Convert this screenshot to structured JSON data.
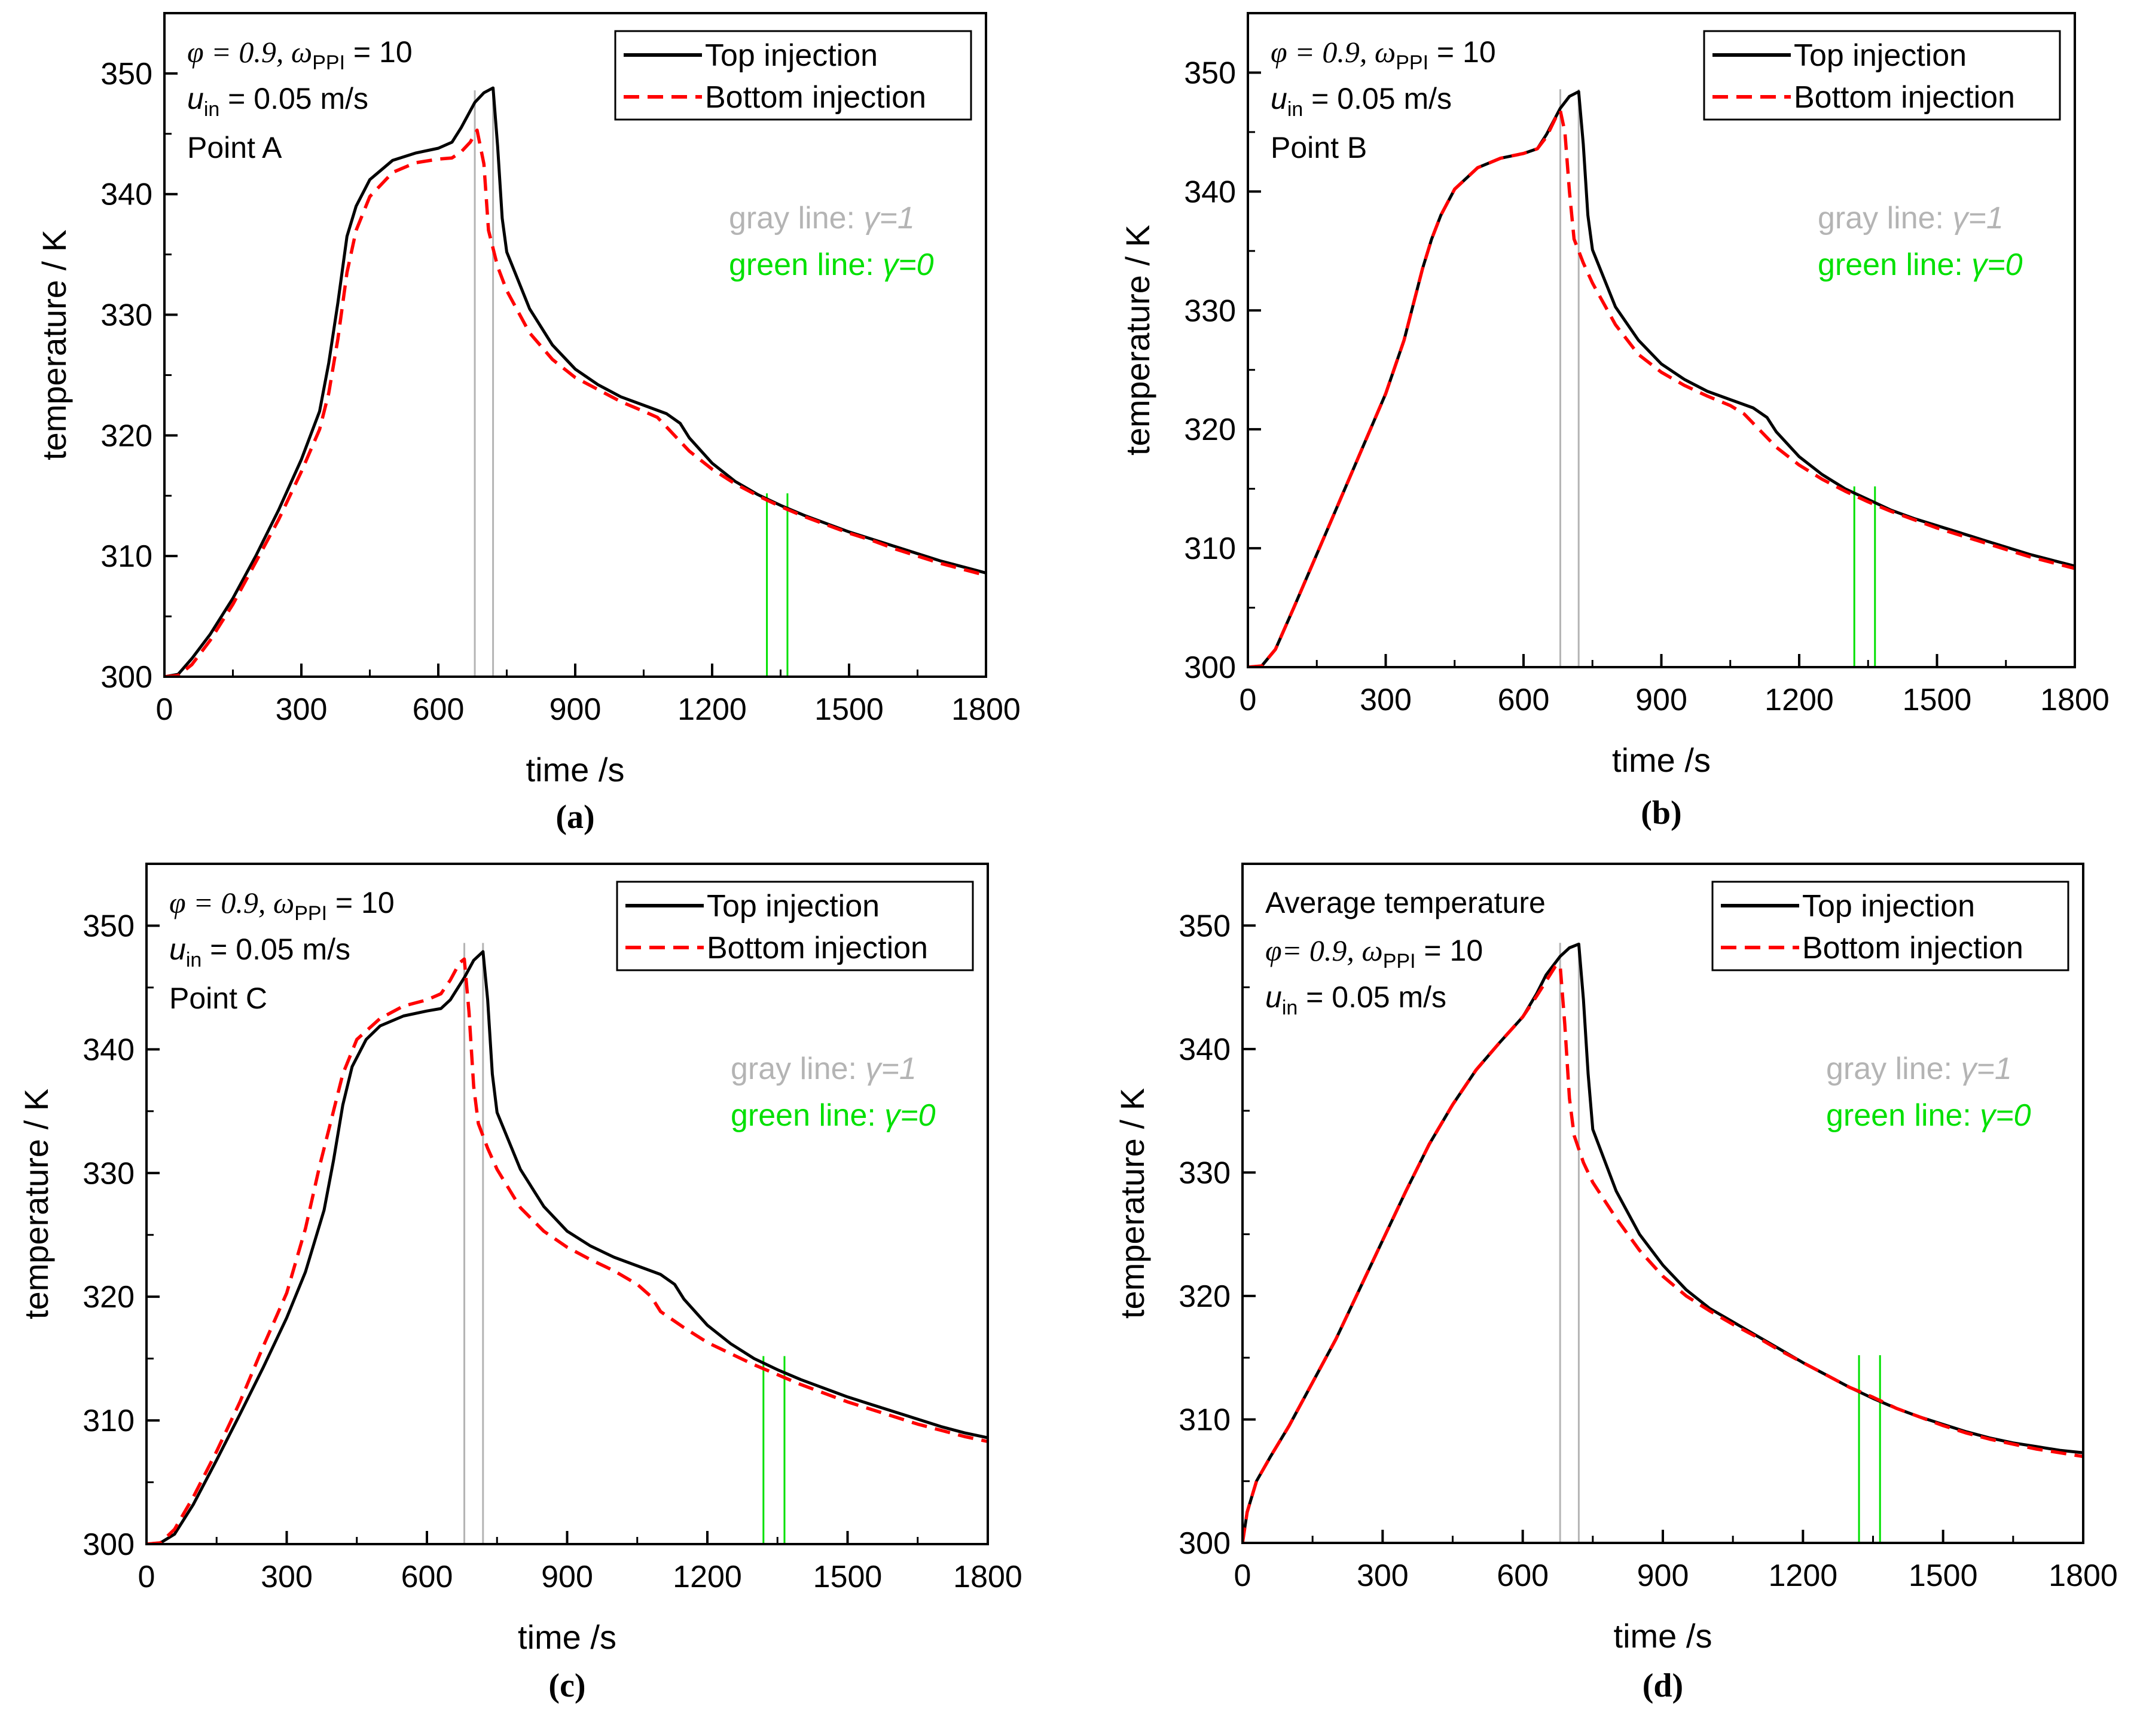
{
  "figure": {
    "panels": [
      "a",
      "b",
      "c",
      "d"
    ]
  },
  "colors": {
    "top": "#000000",
    "bottom": "#ff0000",
    "gray_line": "#b4b4b4",
    "green_line": "#00e000"
  },
  "chart_data": [
    {
      "id": "a",
      "type": "line",
      "caption": "(a)",
      "xlabel": "time /s",
      "ylabel": "temperature / K",
      "xlim": [
        0,
        1800
      ],
      "ylim": [
        300,
        355
      ],
      "xticks": [
        0,
        300,
        600,
        900,
        1200,
        1500,
        1800
      ],
      "yticks": [
        300,
        310,
        320,
        330,
        340,
        350
      ],
      "annotation_lines": [
        "φ = 0.9, ω_PPI = 10",
        "u_in = 0.05 m/s",
        "Point A"
      ],
      "ann": {
        "phi": "φ = 0.9, ",
        "omega": "ω",
        "ppi": "PPI",
        "omega_val": " = 10",
        "u": "u",
        "u_sub": "in",
        "u_val": " = 0.05 m/s",
        "point": "Point A"
      },
      "gray_text": {
        "label": "gray   line: ",
        "gamma": "γ=1"
      },
      "green_text": {
        "label": "green line: ",
        "gamma": "γ=0"
      },
      "vlines": {
        "gray": [
          680,
          720
        ],
        "green": [
          1320,
          1365
        ]
      },
      "legend": [
        "Top injection",
        "Bottom injection"
      ],
      "series": [
        {
          "name": "Top injection",
          "x": [
            0,
            30,
            60,
            100,
            150,
            200,
            250,
            300,
            340,
            360,
            380,
            400,
            420,
            450,
            500,
            550,
            600,
            630,
            650,
            680,
            700,
            720,
            730,
            740,
            750,
            800,
            850,
            900,
            950,
            1000,
            1050,
            1100,
            1130,
            1150,
            1200,
            1250,
            1300,
            1350,
            1400,
            1450,
            1500,
            1550,
            1600,
            1650,
            1700,
            1750,
            1800
          ],
          "y": [
            300,
            300.2,
            301.5,
            303.5,
            306.5,
            310,
            313.8,
            318,
            322,
            326,
            331,
            336.5,
            339,
            341.2,
            342.8,
            343.4,
            343.8,
            344.3,
            345.5,
            347.6,
            348.4,
            348.8,
            344,
            338,
            335.2,
            330.5,
            327.5,
            325.5,
            324.2,
            323.2,
            322.5,
            321.8,
            321,
            319.8,
            317.7,
            316.2,
            315.1,
            314.2,
            313.4,
            312.7,
            312,
            311.4,
            310.8,
            310.2,
            309.6,
            309.1,
            308.6
          ]
        },
        {
          "name": "Bottom injection",
          "x": [
            0,
            30,
            60,
            100,
            150,
            200,
            250,
            300,
            340,
            360,
            380,
            400,
            420,
            450,
            500,
            550,
            600,
            630,
            650,
            670,
            685,
            700,
            710,
            730,
            750,
            800,
            850,
            900,
            950,
            1000,
            1050,
            1080,
            1100,
            1150,
            1200,
            1250,
            1300,
            1350,
            1400,
            1450,
            1500,
            1550,
            1600,
            1650,
            1700,
            1750,
            1800
          ],
          "y": [
            300,
            300.1,
            301,
            303,
            306,
            309.5,
            313,
            317,
            320.5,
            323.5,
            328,
            333.5,
            337,
            339.8,
            341.8,
            342.6,
            342.9,
            343,
            343.5,
            344.3,
            345.3,
            342.5,
            337,
            334,
            332,
            328.5,
            326.3,
            324.8,
            323.8,
            322.8,
            322,
            321.5,
            320.7,
            318.7,
            317.2,
            316,
            315,
            314.1,
            313.3,
            312.6,
            311.9,
            311.3,
            310.6,
            310,
            309.4,
            308.9,
            308.4
          ]
        }
      ]
    },
    {
      "id": "b",
      "type": "line",
      "caption": "(b)",
      "xlabel": "time /s",
      "ylabel": "temperature / K",
      "xlim": [
        0,
        1800
      ],
      "ylim": [
        300,
        355
      ],
      "xticks": [
        0,
        300,
        600,
        900,
        1200,
        1500,
        1800
      ],
      "yticks": [
        300,
        310,
        320,
        330,
        340,
        350
      ],
      "annotation_lines": [
        "φ = 0.9, ω_PPI = 10",
        "u_in = 0.05 m/s",
        "Point B"
      ],
      "ann": {
        "phi": "φ = 0.9, ",
        "omega": "ω",
        "ppi": "PPI",
        "omega_val": " = 10",
        "u": "u",
        "u_sub": "in",
        "u_val": " = 0.05 m/s",
        "point": "Point B"
      },
      "gray_text": {
        "label": "gray   line: ",
        "gamma": "γ=1"
      },
      "green_text": {
        "label": "green line: ",
        "gamma": "γ=0"
      },
      "vlines": {
        "gray": [
          680,
          720
        ],
        "green": [
          1320,
          1365
        ]
      },
      "legend": [
        "Top injection",
        "Bottom injection"
      ],
      "series": [
        {
          "name": "Top injection",
          "x": [
            0,
            30,
            60,
            100,
            150,
            200,
            250,
            300,
            340,
            360,
            380,
            400,
            420,
            450,
            500,
            550,
            600,
            630,
            650,
            680,
            700,
            720,
            730,
            740,
            750,
            800,
            850,
            900,
            950,
            1000,
            1050,
            1100,
            1130,
            1150,
            1200,
            1250,
            1300,
            1350,
            1400,
            1450,
            1500,
            1550,
            1600,
            1650,
            1700,
            1750,
            1800
          ],
          "y": [
            300,
            300.1,
            301.5,
            305,
            309.5,
            314,
            318.5,
            323,
            327.5,
            330.5,
            333.5,
            336,
            338,
            340.2,
            342,
            342.8,
            343.2,
            343.6,
            344.8,
            347,
            348,
            348.4,
            344,
            338,
            335.1,
            330.3,
            327.5,
            325.5,
            324.2,
            323.2,
            322.5,
            321.8,
            321,
            319.8,
            317.7,
            316.2,
            315,
            314.1,
            313.2,
            312.5,
            311.9,
            311.3,
            310.7,
            310.1,
            309.5,
            309,
            308.5
          ]
        },
        {
          "name": "Bottom injection",
          "x": [
            0,
            30,
            60,
            100,
            150,
            200,
            250,
            300,
            340,
            360,
            380,
            400,
            420,
            450,
            500,
            550,
            600,
            630,
            650,
            670,
            680,
            690,
            700,
            710,
            730,
            750,
            800,
            850,
            900,
            950,
            1000,
            1050,
            1080,
            1100,
            1150,
            1200,
            1250,
            1300,
            1350,
            1400,
            1450,
            1500,
            1550,
            1600,
            1650,
            1700,
            1750,
            1800
          ],
          "y": [
            300,
            300.1,
            301.5,
            305,
            309.5,
            314,
            318.5,
            323,
            327.5,
            330.5,
            333.5,
            336,
            338,
            340.2,
            342,
            342.8,
            343.2,
            343.6,
            344.6,
            346.2,
            346.8,
            345,
            340,
            336,
            334,
            332.3,
            328.8,
            326.3,
            324.8,
            323.7,
            322.8,
            322,
            321.3,
            320.5,
            318.5,
            317,
            315.8,
            314.8,
            313.9,
            313.1,
            312.4,
            311.7,
            311.1,
            310.5,
            309.9,
            309.3,
            308.8,
            308.3
          ]
        }
      ]
    },
    {
      "id": "c",
      "type": "line",
      "caption": "(c)",
      "xlabel": "time /s",
      "ylabel": "temperature / K",
      "xlim": [
        0,
        1800
      ],
      "ylim": [
        300,
        355
      ],
      "xticks": [
        0,
        300,
        600,
        900,
        1200,
        1500,
        1800
      ],
      "yticks": [
        300,
        310,
        320,
        330,
        340,
        350
      ],
      "annotation_lines": [
        "φ = 0.9, ω_PPI = 10",
        "u_in = 0.05 m/s",
        "Point C"
      ],
      "ann": {
        "phi": "φ = 0.9, ",
        "omega": "ω",
        "ppi": "PPI",
        "omega_val": " = 10",
        "u": "u",
        "u_sub": "in",
        "u_val": " = 0.05 m/s",
        "point": "Point C"
      },
      "gray_text": {
        "label": "gray   line: ",
        "gamma": "γ=1"
      },
      "green_text": {
        "label": "green line: ",
        "gamma": "γ=0"
      },
      "vlines": {
        "gray": [
          680,
          720
        ],
        "green": [
          1320,
          1365
        ]
      },
      "legend": [
        "Top injection",
        "Bottom injection"
      ],
      "series": [
        {
          "name": "Top injection",
          "x": [
            0,
            30,
            60,
            100,
            150,
            200,
            250,
            300,
            340,
            380,
            400,
            420,
            440,
            470,
            500,
            550,
            600,
            630,
            650,
            680,
            700,
            720,
            730,
            740,
            750,
            800,
            850,
            900,
            950,
            1000,
            1050,
            1100,
            1130,
            1150,
            1200,
            1250,
            1300,
            1350,
            1400,
            1450,
            1500,
            1550,
            1600,
            1650,
            1700,
            1750,
            1800
          ],
          "y": [
            300,
            300.1,
            300.8,
            303.2,
            306.8,
            310.5,
            314.3,
            318.3,
            322,
            327,
            331,
            335.5,
            338.6,
            340.8,
            341.9,
            342.7,
            343.1,
            343.3,
            344,
            345.8,
            347.2,
            347.9,
            344,
            338,
            334.9,
            330.3,
            327.3,
            325.3,
            324.1,
            323.2,
            322.5,
            321.8,
            321,
            319.8,
            317.7,
            316.2,
            315,
            314.1,
            313.3,
            312.6,
            311.9,
            311.3,
            310.7,
            310.1,
            309.5,
            309,
            308.6
          ]
        },
        {
          "name": "Bottom injection",
          "x": [
            0,
            30,
            60,
            100,
            150,
            200,
            250,
            300,
            340,
            370,
            400,
            420,
            450,
            500,
            550,
            600,
            630,
            650,
            670,
            680,
            690,
            700,
            710,
            730,
            750,
            800,
            850,
            900,
            950,
            1000,
            1050,
            1080,
            1100,
            1150,
            1200,
            1250,
            1300,
            1350,
            1400,
            1450,
            1500,
            1550,
            1600,
            1650,
            1700,
            1750,
            1800
          ],
          "y": [
            300,
            300.1,
            301.2,
            303.8,
            307.5,
            311.5,
            316,
            320.3,
            325.5,
            330.5,
            335,
            338,
            340.8,
            342.5,
            343.5,
            344,
            344.5,
            345.6,
            347,
            347.3,
            343,
            337,
            334,
            332,
            330.3,
            327.2,
            325.3,
            324,
            323,
            322.1,
            321,
            320,
            318.8,
            317.5,
            316.3,
            315.4,
            314.5,
            313.7,
            312.9,
            312.2,
            311.5,
            310.9,
            310.3,
            309.7,
            309.2,
            308.7,
            308.3
          ]
        }
      ]
    },
    {
      "id": "d",
      "type": "line",
      "caption": "(d)",
      "xlabel": "time /s",
      "ylabel": "temperature / K",
      "xlim": [
        0,
        1800
      ],
      "ylim": [
        300,
        355
      ],
      "xticks": [
        0,
        300,
        600,
        900,
        1200,
        1500,
        1800
      ],
      "yticks": [
        300,
        310,
        320,
        330,
        340,
        350
      ],
      "annotation_lines": [
        "Average temperature",
        "φ= 0.9, ω_PPI = 10",
        "u_in = 0.05 m/s"
      ],
      "ann": {
        "title": "Average temperature",
        "phi": "φ= 0.9, ",
        "omega": "ω",
        "ppi": "PPI",
        "omega_val": " = 10",
        "u": "u",
        "u_sub": "in",
        "u_val": " = 0.05 m/s"
      },
      "gray_text": {
        "label": "gray   line: ",
        "gamma": "γ=1"
      },
      "green_text": {
        "label": "green line: ",
        "gamma": "γ=0"
      },
      "vlines": {
        "gray": [
          680,
          720
        ],
        "green": [
          1320,
          1365
        ]
      },
      "legend": [
        "Top injection",
        "Bottom injection"
      ],
      "series": [
        {
          "name": "Top injection",
          "x": [
            0,
            10,
            30,
            60,
            100,
            150,
            200,
            250,
            300,
            350,
            400,
            450,
            500,
            550,
            600,
            630,
            650,
            680,
            700,
            720,
            730,
            740,
            750,
            800,
            850,
            900,
            950,
            1000,
            1050,
            1100,
            1150,
            1200,
            1250,
            1300,
            1350,
            1400,
            1450,
            1500,
            1550,
            1600,
            1650,
            1700,
            1750,
            1800
          ],
          "y": [
            300,
            302.5,
            305,
            307,
            309.5,
            313,
            316.5,
            320.5,
            324.5,
            328.5,
            332.3,
            335.5,
            338.3,
            340.5,
            342.6,
            344.5,
            346,
            347.5,
            348.2,
            348.5,
            344,
            338,
            333.5,
            328.5,
            325,
            322.5,
            320.5,
            319,
            317.9,
            316.8,
            315.7,
            314.6,
            313.6,
            312.6,
            311.7,
            310.9,
            310.2,
            309.6,
            309,
            308.5,
            308.1,
            307.8,
            307.5,
            307.3
          ]
        },
        {
          "name": "Bottom injection",
          "x": [
            0,
            10,
            30,
            60,
            100,
            150,
            200,
            250,
            300,
            350,
            400,
            450,
            500,
            550,
            600,
            630,
            650,
            670,
            680,
            690,
            700,
            710,
            730,
            750,
            800,
            850,
            900,
            950,
            1000,
            1050,
            1100,
            1150,
            1200,
            1250,
            1300,
            1350,
            1400,
            1450,
            1500,
            1550,
            1600,
            1650,
            1700,
            1750,
            1800
          ],
          "y": [
            300,
            302.5,
            305,
            307,
            309.5,
            313,
            316.5,
            320.5,
            324.5,
            328.5,
            332.3,
            335.5,
            338.3,
            340.5,
            342.6,
            344.3,
            345.5,
            346.7,
            346.8,
            342,
            336,
            333,
            330.8,
            329.2,
            326.3,
            323.7,
            321.6,
            320,
            318.8,
            317.7,
            316.7,
            315.6,
            314.6,
            313.6,
            312.6,
            311.8,
            310.9,
            310.2,
            309.5,
            308.9,
            308.4,
            308,
            307.6,
            307.3,
            307
          ]
        }
      ]
    }
  ]
}
